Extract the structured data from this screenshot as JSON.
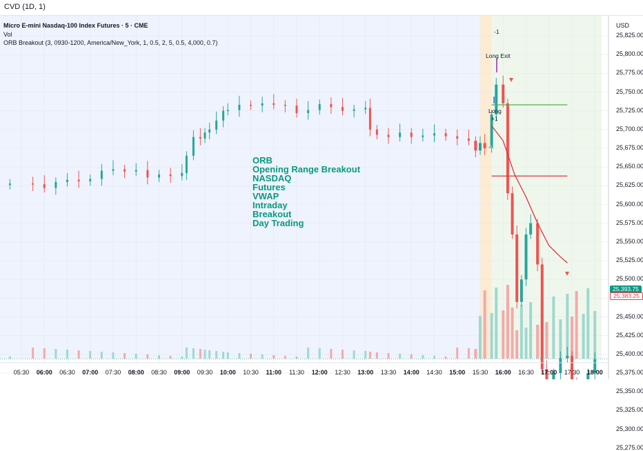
{
  "indicator_pane": {
    "title": "CVD (1D, 1)"
  },
  "symbol": {
    "title": "Micro E-mini Nasdaq-100 Index Futures · 5 · CME"
  },
  "indicators": {
    "vol": "Vol",
    "orb": "ORB Breakout (3, 0930-1200, America/New_York, 1, 0.5, 2, 5, 0.5, 4,000, 0.7)"
  },
  "price_scale": {
    "currency": "USD",
    "labels": [
      "25,825.00",
      "25,800.00",
      "25,775.00",
      "25,750.00",
      "25,725.00",
      "25,700.00",
      "25,675.00",
      "25,650.00",
      "25,625.00",
      "25,600.00",
      "25,575.00",
      "25,550.00",
      "25,525.00",
      "25,500.00",
      "25,475.00",
      "25,450.00",
      "25,425.00",
      "25,400.00",
      "25,375.00",
      "25,350.00",
      "25,325.00",
      "25,300.00",
      "25,275.00"
    ],
    "last_price": "25,393.75",
    "second_price": "25,383.25"
  },
  "time_axis": [
    {
      "label": "05:30",
      "bold": false
    },
    {
      "label": "06:00",
      "bold": true
    },
    {
      "label": "06:30",
      "bold": false
    },
    {
      "label": "07:00",
      "bold": true
    },
    {
      "label": "07:30",
      "bold": false
    },
    {
      "label": "08:00",
      "bold": true
    },
    {
      "label": "08:30",
      "bold": false
    },
    {
      "label": "09:00",
      "bold": true
    },
    {
      "label": "09:30",
      "bold": false
    },
    {
      "label": "10:00",
      "bold": true
    },
    {
      "label": "10:30",
      "bold": false
    },
    {
      "label": "11:00",
      "bold": true
    },
    {
      "label": "11:30",
      "bold": false
    },
    {
      "label": "12:00",
      "bold": true
    },
    {
      "label": "12:30",
      "bold": false
    },
    {
      "label": "13:00",
      "bold": true
    },
    {
      "label": "13:30",
      "bold": false
    },
    {
      "label": "14:00",
      "bold": true
    },
    {
      "label": "14:30",
      "bold": false
    },
    {
      "label": "15:00",
      "bold": true
    },
    {
      "label": "15:30",
      "bold": false
    },
    {
      "label": "16:00",
      "bold": true
    },
    {
      "label": "16:30",
      "bold": false
    },
    {
      "label": "17:00",
      "bold": true
    },
    {
      "label": "17:30",
      "bold": false
    },
    {
      "label": "18:00",
      "bold": true
    }
  ],
  "watermark_lines": [
    "ORB",
    "Opening Range Breakout",
    "NASDAQ",
    "Futures",
    "VWAP",
    "Intraday",
    "Breakout",
    "Day Trading"
  ],
  "signals": {
    "long_exit": "Long Exit",
    "minus_one": "-1",
    "long": "Long",
    "plus_one": "+1"
  },
  "colors": {
    "up": "#26a69a",
    "down": "#ef5350",
    "vwap": "#e0303f",
    "orb_high": "#4caf50",
    "orb_low": "#e0303f",
    "watermark": "#089981"
  },
  "chart_data": {
    "type": "candlestick",
    "price_range": [
      25265,
      25840
    ],
    "x_start": "05:15",
    "x_end": "18:10",
    "opening_range": {
      "high": 25733,
      "low": 25638
    },
    "last_price": 25393.75,
    "closes": [
      [
        5.25,
        25628
      ],
      [
        5.75,
        25627
      ],
      [
        6.0,
        25622
      ],
      [
        6.25,
        25630
      ],
      [
        6.5,
        25633
      ],
      [
        6.75,
        25631
      ],
      [
        7.0,
        25634
      ],
      [
        7.25,
        25645
      ],
      [
        7.5,
        25647
      ],
      [
        7.75,
        25644
      ],
      [
        8.0,
        25646
      ],
      [
        8.25,
        25636
      ],
      [
        8.5,
        25640
      ],
      [
        8.75,
        25638
      ],
      [
        9.0,
        25642
      ],
      [
        9.1,
        25665
      ],
      [
        9.25,
        25690
      ],
      [
        9.4,
        25688
      ],
      [
        9.5,
        25696
      ],
      [
        9.6,
        25700
      ],
      [
        9.75,
        25712
      ],
      [
        9.9,
        25725
      ],
      [
        10.0,
        25726
      ],
      [
        10.25,
        25733
      ],
      [
        10.5,
        25732
      ],
      [
        10.75,
        25735
      ],
      [
        11.0,
        25733
      ],
      [
        11.25,
        25732
      ],
      [
        11.5,
        25722
      ],
      [
        11.75,
        25726
      ],
      [
        12.0,
        25734
      ],
      [
        12.25,
        25730
      ],
      [
        12.5,
        25725
      ],
      [
        12.75,
        25727
      ],
      [
        13.0,
        25729
      ],
      [
        13.1,
        25700
      ],
      [
        13.25,
        25693
      ],
      [
        13.5,
        25690
      ],
      [
        13.75,
        25696
      ],
      [
        14.0,
        25690
      ],
      [
        14.25,
        25692
      ],
      [
        14.5,
        25695
      ],
      [
        14.75,
        25691
      ],
      [
        15.0,
        25688
      ],
      [
        15.25,
        25685
      ],
      [
        15.4,
        25672
      ],
      [
        15.5,
        25682
      ],
      [
        15.6,
        25675
      ],
      [
        15.75,
        25720
      ],
      [
        15.85,
        25760
      ],
      [
        16.0,
        25735
      ],
      [
        16.1,
        25615
      ],
      [
        16.2,
        25560
      ],
      [
        16.3,
        25470
      ],
      [
        16.4,
        25500
      ],
      [
        16.5,
        25560
      ],
      [
        16.6,
        25575
      ],
      [
        16.75,
        25520
      ],
      [
        16.85,
        25380
      ],
      [
        16.95,
        25350
      ],
      [
        17.1,
        25375
      ],
      [
        17.25,
        25395
      ],
      [
        17.4,
        25398
      ],
      [
        17.5,
        25360
      ],
      [
        17.6,
        25320
      ],
      [
        17.75,
        25340
      ],
      [
        17.85,
        25375
      ],
      [
        18.0,
        25393.75
      ]
    ],
    "vwap": [
      [
        15.75,
        25705
      ],
      [
        16.0,
        25685
      ],
      [
        16.25,
        25640
      ],
      [
        16.5,
        25610
      ],
      [
        16.75,
        25575
      ],
      [
        17.0,
        25545
      ],
      [
        17.25,
        25530
      ],
      [
        17.4,
        25522
      ]
    ]
  }
}
